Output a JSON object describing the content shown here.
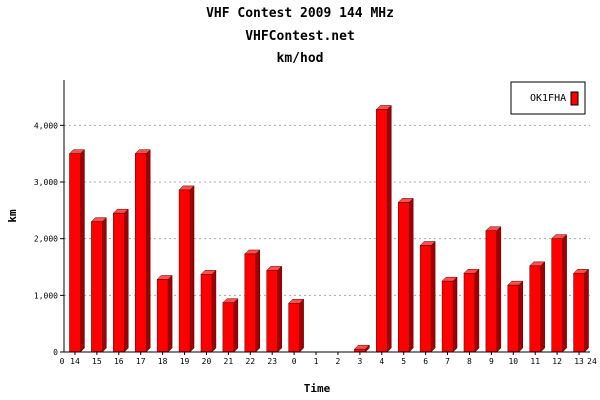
{
  "chart_data": {
    "type": "bar",
    "title": "VHF Contest 2009 144 MHz",
    "subtitle": "VHFContest.net",
    "subtitle2": "km/hod",
    "xlabel": "Time",
    "ylabel": "km",
    "categories": [
      "14",
      "15",
      "16",
      "17",
      "18",
      "19",
      "20",
      "21",
      "22",
      "23",
      "0",
      "1",
      "2",
      "3",
      "4",
      "5",
      "6",
      "7",
      "8",
      "9",
      "10",
      "11",
      "12",
      "13"
    ],
    "x_axis_start_label": "0",
    "x_axis_end_label": "24",
    "series": [
      {
        "name": "OK1FHA",
        "values": [
          3500,
          2300,
          2450,
          3500,
          1280,
          2860,
          1370,
          870,
          1730,
          1440,
          860,
          0,
          0,
          50,
          4280,
          2640,
          1880,
          1250,
          1390,
          2140,
          1180,
          1520,
          2000,
          1390
        ],
        "color": "#ff0000"
      }
    ],
    "yticks": [
      "0",
      "1,000",
      "2,000",
      "3,000",
      "4,000"
    ],
    "ylim": [
      0,
      4800
    ],
    "grid": true,
    "legend_position": "top-right"
  }
}
